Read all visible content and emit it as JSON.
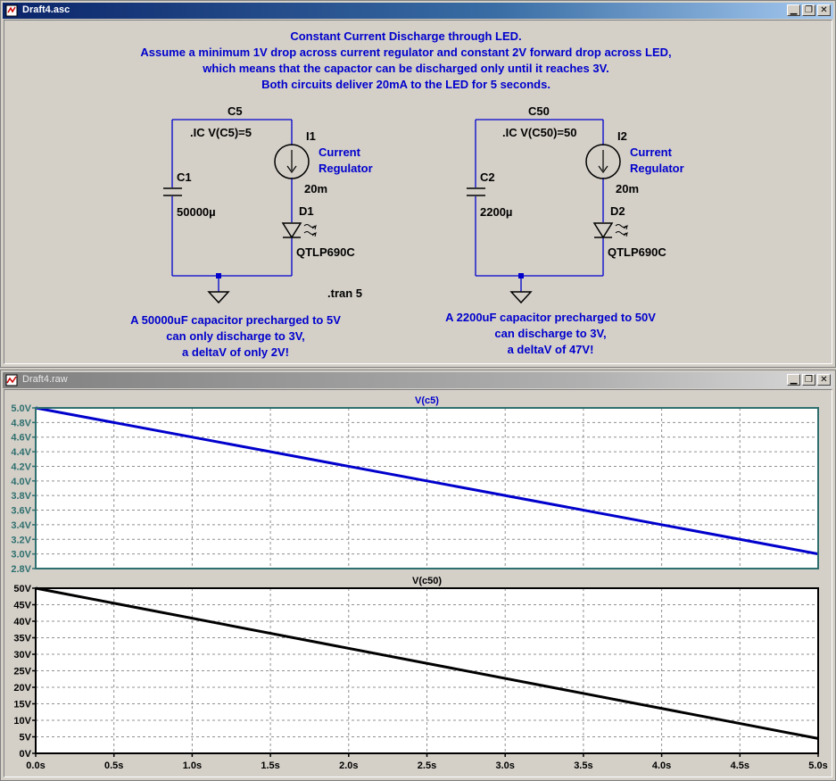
{
  "schematic_window": {
    "title": "Draft4.asc",
    "notes": {
      "line1": "Constant Current Discharge through LED.",
      "line2": "Assume a minimum 1V drop across current regulator and constant 2V forward drop across LED,",
      "line3": "which means that the capactor can be discharged only until it reaches 3V.",
      "line4": "Both circuits deliver 20mA to the LED for 5 seconds."
    },
    "circuit1": {
      "net": "C5",
      "ic": ".IC V(C5)=5",
      "cap_name": "C1",
      "cap_value": "50000µ",
      "src_name": "I1",
      "src_desc1": "Current",
      "src_desc2": "Regulator",
      "src_value": "20m",
      "led_name": "D1",
      "led_model": "QTLP690C",
      "comment1": "A 50000uF capacitor precharged to 5V",
      "comment2": "can only discharge to 3V,",
      "comment3": "a deltaV of only 2V!"
    },
    "circuit2": {
      "net": "C50",
      "ic": ".IC V(C50)=50",
      "cap_name": "C2",
      "cap_value": "2200µ",
      "src_name": "I2",
      "src_desc1": "Current",
      "src_desc2": "Regulator",
      "src_value": "20m",
      "led_name": "D2",
      "led_model": "QTLP690C",
      "comment1": "A 2200uF capacitor precharged to 50V",
      "comment2": "can discharge to 3V,",
      "comment3": "a deltaV of 47V!"
    },
    "tran": ".tran 5",
    "colors": {
      "wire": "#0000cc",
      "text": "#0000cc",
      "node": "#0000cc"
    }
  },
  "waveform_window": {
    "title": "Draft4.raw",
    "colors": {
      "trace1": "#0000cc",
      "trace2": "#000000",
      "frame1": "#2f6f6f",
      "frame2": "#000000",
      "background": "#ffffff"
    }
  },
  "chart_data": [
    {
      "type": "line",
      "title": "V(c5)",
      "x": [
        0,
        5
      ],
      "series": [
        {
          "name": "V(c5)",
          "values": [
            5.0,
            3.0
          ]
        }
      ],
      "xlim": [
        0,
        5
      ],
      "ylim": [
        2.8,
        5.0
      ],
      "yticks": [
        "5.0V",
        "4.8V",
        "4.6V",
        "4.4V",
        "4.2V",
        "4.0V",
        "3.8V",
        "3.6V",
        "3.4V",
        "3.2V",
        "3.0V",
        "2.8V"
      ],
      "grid": true
    },
    {
      "type": "line",
      "title": "V(c50)",
      "x": [
        0,
        5
      ],
      "series": [
        {
          "name": "V(c50)",
          "values": [
            50,
            4.5
          ]
        }
      ],
      "xlim": [
        0,
        5
      ],
      "ylim": [
        0,
        50
      ],
      "yticks": [
        "50V",
        "45V",
        "40V",
        "35V",
        "30V",
        "25V",
        "20V",
        "15V",
        "10V",
        "5V",
        "0V"
      ],
      "xticks": [
        "0.0s",
        "0.5s",
        "1.0s",
        "1.5s",
        "2.0s",
        "2.5s",
        "3.0s",
        "3.5s",
        "4.0s",
        "4.5s",
        "5.0s"
      ],
      "grid": true
    }
  ]
}
